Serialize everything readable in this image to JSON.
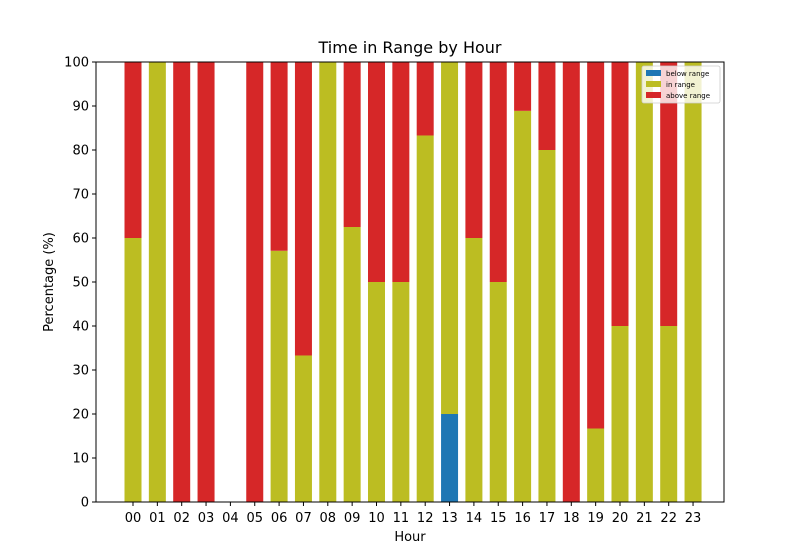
{
  "chart_data": {
    "type": "bar",
    "stacked": true,
    "title": "Time in Range by Hour",
    "xlabel": "Hour",
    "ylabel": "Percentage (%)",
    "ylim": [
      0,
      100
    ],
    "yticks": [
      0,
      10,
      20,
      30,
      40,
      50,
      60,
      70,
      80,
      90,
      100
    ],
    "categories": [
      "00",
      "01",
      "02",
      "03",
      "04",
      "05",
      "06",
      "07",
      "08",
      "09",
      "10",
      "11",
      "12",
      "13",
      "14",
      "15",
      "16",
      "17",
      "18",
      "19",
      "20",
      "21",
      "22",
      "23"
    ],
    "series": [
      {
        "name": "below range",
        "color": "#1f77b4",
        "values": [
          0,
          0,
          0,
          0,
          0,
          0,
          0,
          0,
          0,
          0,
          0,
          0,
          0,
          20,
          0,
          0,
          0,
          0,
          0,
          0,
          0,
          0,
          0,
          0
        ]
      },
      {
        "name": "in range",
        "color": "#bcbd22",
        "values": [
          60,
          100,
          0,
          0,
          0,
          0,
          57.1,
          33.3,
          100,
          62.5,
          50,
          50,
          83.3,
          80,
          60,
          50,
          88.9,
          80,
          0,
          16.7,
          40,
          100,
          40,
          100
        ]
      },
      {
        "name": "above range",
        "color": "#d62728",
        "values": [
          40,
          0,
          100,
          100,
          0,
          100,
          42.9,
          66.7,
          0,
          37.5,
          50,
          50,
          16.7,
          0,
          40,
          50,
          11.1,
          20,
          100,
          83.3,
          60,
          0,
          60,
          0
        ]
      }
    ],
    "legend": {
      "position": "top-right"
    },
    "grid": false
  }
}
